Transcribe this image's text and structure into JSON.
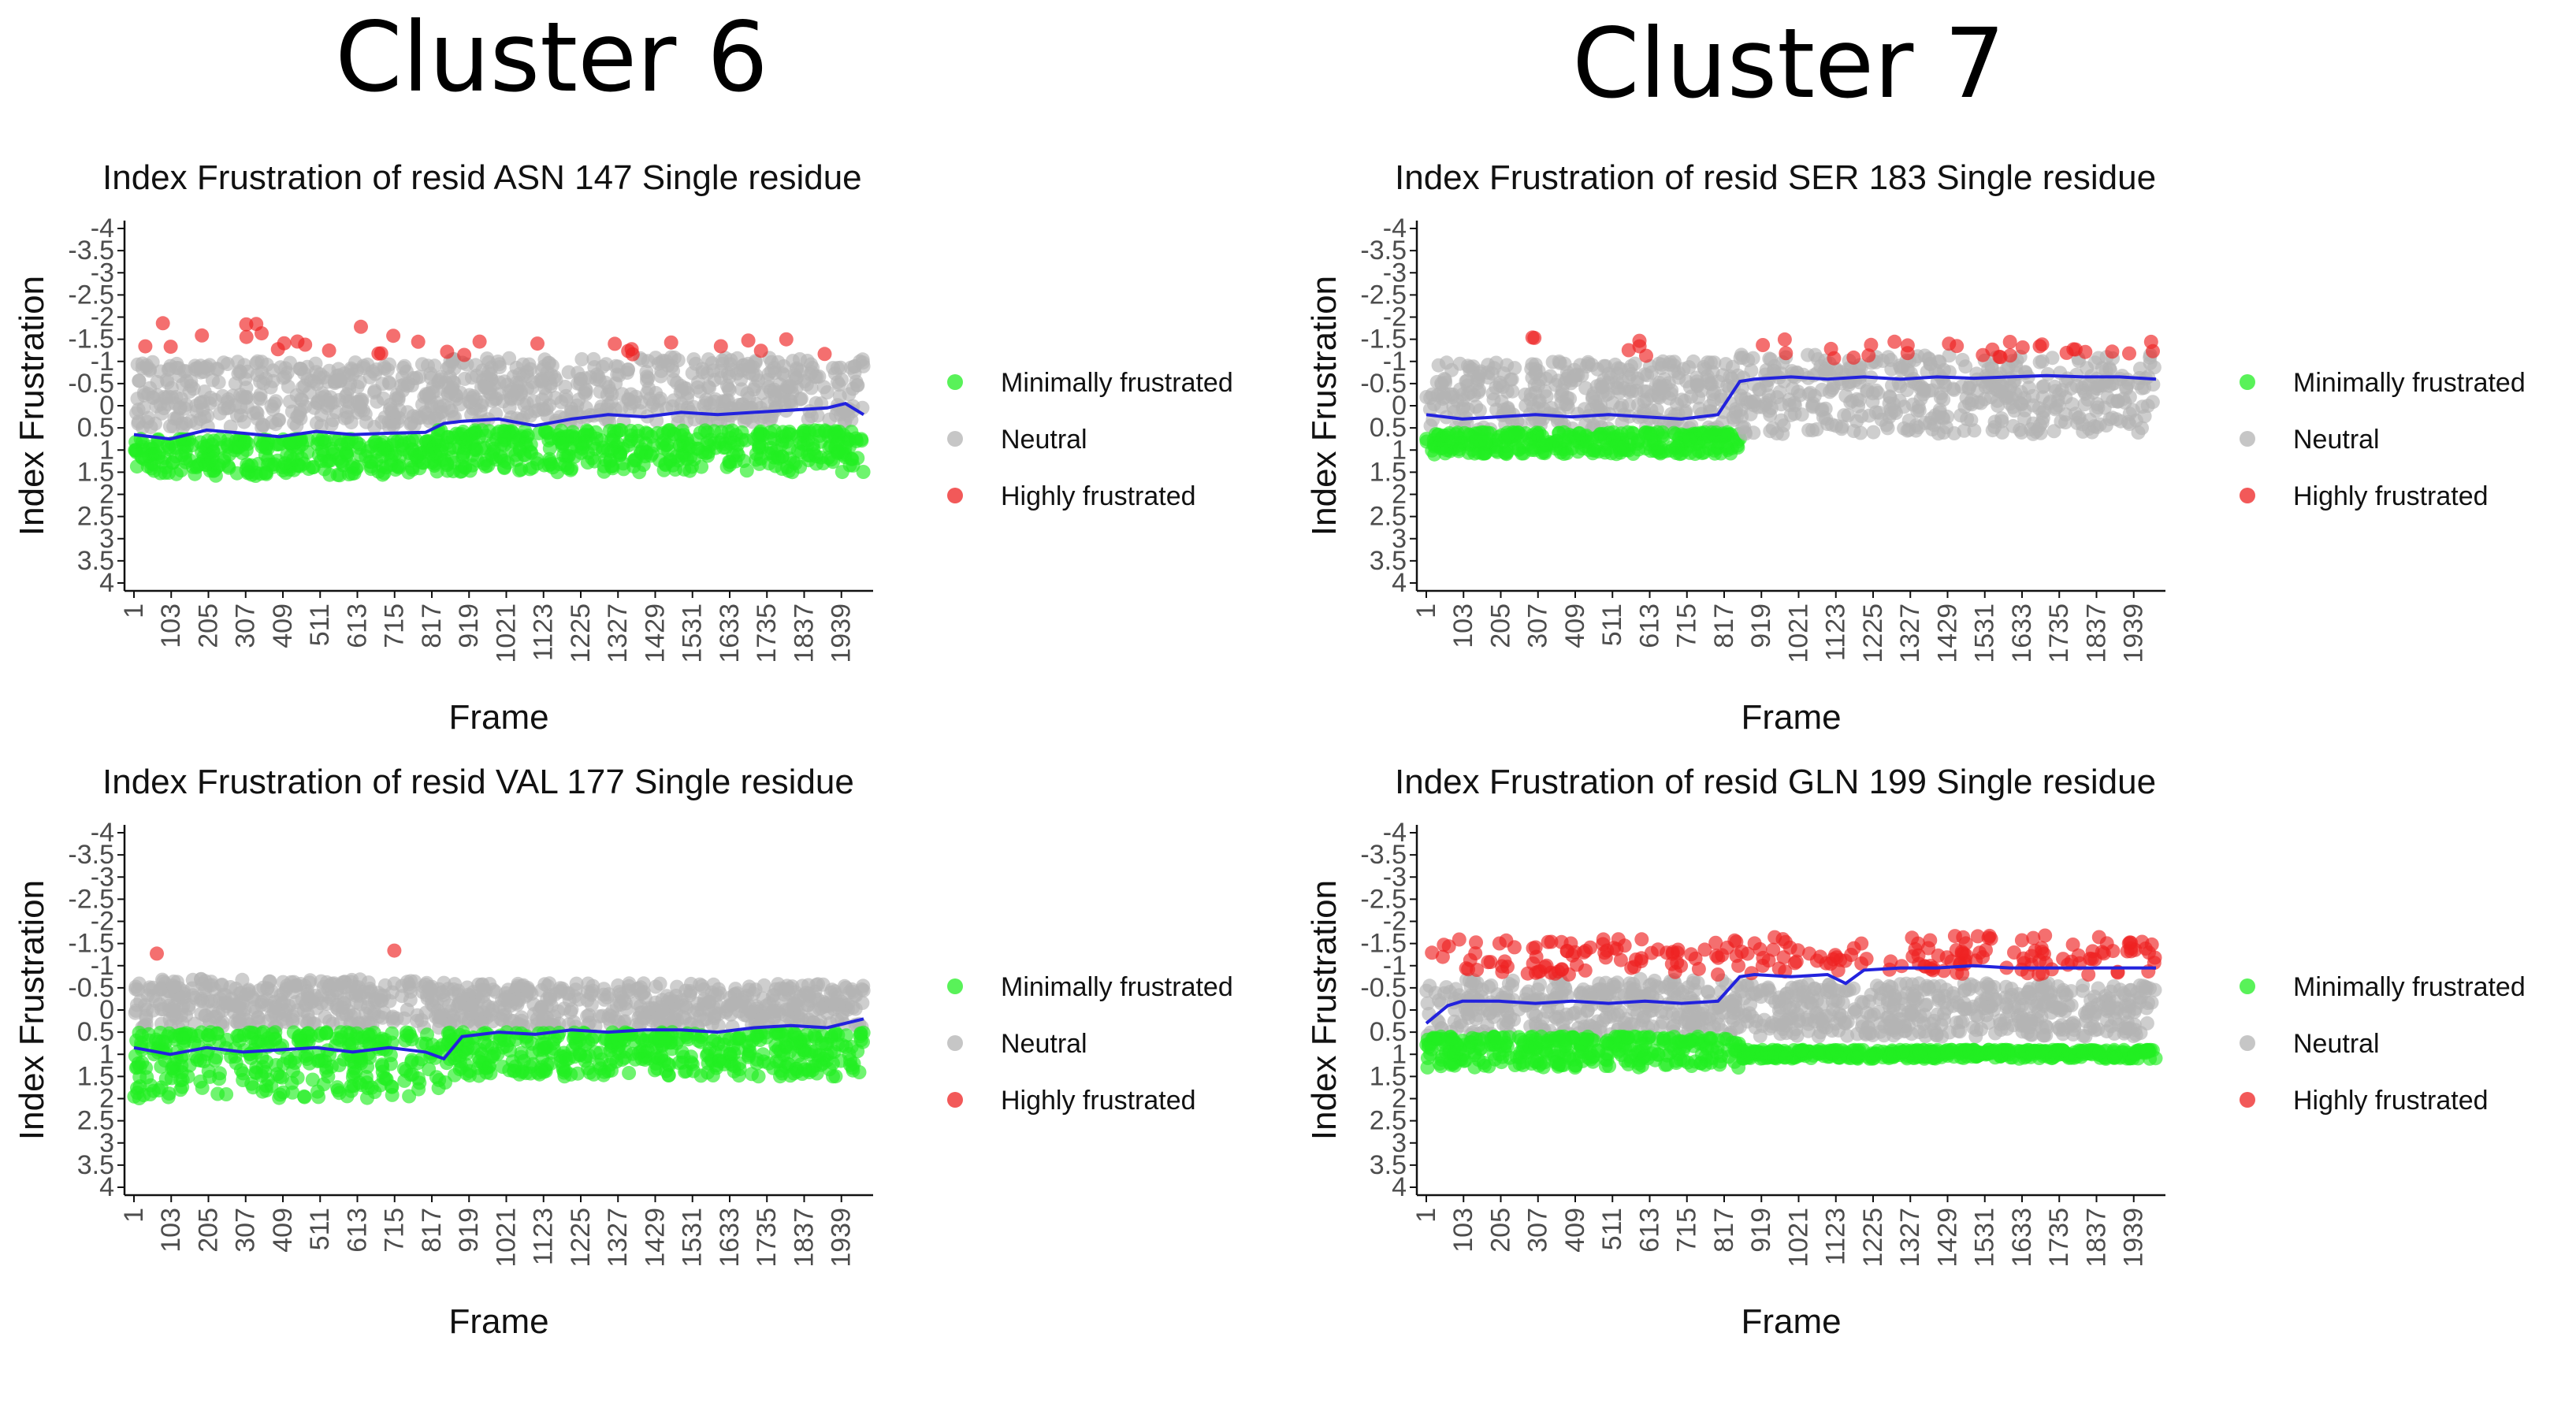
{
  "headings": {
    "left": "Cluster 6",
    "right": "Cluster 7"
  },
  "colors": {
    "minimal": "#22ee22",
    "neutral": "#b3b3b3",
    "high": "#ee2222",
    "trend": "#2222dd",
    "axis": "#111111"
  },
  "legend": {
    "minimal": "Minimally frustrated",
    "neutral": "Neutral",
    "high": "Highly frustrated"
  },
  "axes": {
    "ylabel": "Index Frustration",
    "xlabel": "Frame",
    "yticks": [
      "-4",
      "-3.5",
      "-3",
      "-2.5",
      "-2",
      "-1.5",
      "-1",
      "-0.5",
      "0",
      "0.5",
      "1",
      "1.5",
      "2",
      "2.5",
      "3",
      "3.5",
      "4"
    ],
    "xticks": [
      "1",
      "103",
      "205",
      "307",
      "409",
      "511",
      "613",
      "715",
      "817",
      "919",
      "1021",
      "1123",
      "1225",
      "1327",
      "1429",
      "1531",
      "1633",
      "1735",
      "1837",
      "1939"
    ]
  },
  "chart_data": [
    {
      "type": "scatter",
      "title": "Index Frustration of resid ASN 147 Single residue",
      "xlabel": "Frame",
      "ylabel": "Index Frustration",
      "xlim": [
        1,
        2000
      ],
      "ylim": [
        4,
        -4
      ],
      "grid": false,
      "legend_position": "right",
      "neutral_band": [
        -0.7,
        0.7
      ],
      "segments": [
        {
          "x": [
            1,
            830
          ],
          "minimal": [
            0.75,
            1.6
          ],
          "neutral": [
            -1.0,
            0.5
          ],
          "high": [
            -2.0,
            -1.1
          ],
          "high_count": 18
        },
        {
          "x": [
            830,
            2000
          ],
          "minimal": [
            0.55,
            1.5
          ],
          "neutral": [
            -1.1,
            0.4
          ],
          "high": [
            -1.5,
            -1.1
          ],
          "high_count": 14
        }
      ],
      "trend": {
        "x": [
          1,
          100,
          200,
          300,
          400,
          500,
          600,
          700,
          800,
          850,
          900,
          1000,
          1100,
          1200,
          1300,
          1400,
          1500,
          1600,
          1700,
          1800,
          1900,
          1950,
          2000
        ],
        "y": [
          0.65,
          0.75,
          0.55,
          0.62,
          0.7,
          0.58,
          0.65,
          0.62,
          0.6,
          0.4,
          0.35,
          0.3,
          0.45,
          0.3,
          0.2,
          0.25,
          0.15,
          0.2,
          0.15,
          0.1,
          0.05,
          -0.05,
          0.2
        ]
      }
    },
    {
      "type": "scatter",
      "title": "Index Frustration of resid SER 183 Single residue",
      "xlabel": "Frame",
      "ylabel": "Index Frustration",
      "xlim": [
        1,
        2000
      ],
      "ylim": [
        4,
        -4
      ],
      "grid": false,
      "legend_position": "right",
      "neutral_band": [
        -0.7,
        0.7
      ],
      "segments": [
        {
          "x": [
            1,
            860
          ],
          "minimal": [
            0.6,
            1.1
          ],
          "neutral": [
            -1.0,
            0.55
          ],
          "high": [
            -1.6,
            -1.1
          ],
          "high_count": 6
        },
        {
          "x": [
            860,
            2000
          ],
          "minimal": null,
          "neutral": [
            -1.15,
            0.65
          ],
          "high": [
            -1.5,
            -1.05
          ],
          "high_count": 30
        }
      ],
      "trend": {
        "x": [
          1,
          100,
          200,
          300,
          400,
          500,
          600,
          700,
          800,
          860,
          900,
          1000,
          1100,
          1200,
          1300,
          1400,
          1500,
          1600,
          1700,
          1800,
          1900,
          2000
        ],
        "y": [
          0.2,
          0.3,
          0.25,
          0.2,
          0.25,
          0.2,
          0.25,
          0.3,
          0.2,
          -0.55,
          -0.6,
          -0.65,
          -0.6,
          -0.65,
          -0.6,
          -0.65,
          -0.62,
          -0.65,
          -0.68,
          -0.65,
          -0.65,
          -0.6
        ]
      }
    },
    {
      "type": "scatter",
      "title": "Index Frustration of resid VAL 177 Single residue",
      "xlabel": "Frame",
      "ylabel": "Index Frustration",
      "xlim": [
        1,
        2000
      ],
      "ylim": [
        4,
        -4
      ],
      "grid": false,
      "legend_position": "right",
      "neutral_band": [
        -0.7,
        0.7
      ],
      "segments": [
        {
          "x": [
            1,
            860
          ],
          "minimal": [
            0.5,
            2.0
          ],
          "neutral": [
            -0.7,
            0.4
          ],
          "high": [
            -1.35,
            -1.25
          ],
          "high_count": 2
        },
        {
          "x": [
            860,
            2000
          ],
          "minimal": [
            0.5,
            1.5
          ],
          "neutral": [
            -0.6,
            0.4
          ],
          "high": null,
          "high_count": 0
        }
      ],
      "trend": {
        "x": [
          1,
          100,
          200,
          300,
          400,
          500,
          600,
          700,
          800,
          850,
          900,
          1000,
          1100,
          1200,
          1300,
          1400,
          1500,
          1600,
          1700,
          1800,
          1900,
          2000
        ],
        "y": [
          0.85,
          1.0,
          0.85,
          0.95,
          0.9,
          0.85,
          0.95,
          0.85,
          0.95,
          1.1,
          0.6,
          0.5,
          0.55,
          0.45,
          0.5,
          0.45,
          0.45,
          0.5,
          0.4,
          0.35,
          0.4,
          0.2
        ]
      }
    },
    {
      "type": "scatter",
      "title": "Index Frustration of resid GLN 199 Single residue",
      "xlabel": "Frame",
      "ylabel": "Index Frustration",
      "xlim": [
        1,
        2000
      ],
      "ylim": [
        4,
        -4
      ],
      "grid": false,
      "legend_position": "right",
      "neutral_band": [
        -0.7,
        0.7
      ],
      "segments": [
        {
          "x": [
            1,
            860
          ],
          "minimal": [
            0.6,
            1.3
          ],
          "neutral": [
            -0.7,
            0.6
          ],
          "high": [
            -1.6,
            -0.8
          ],
          "high_count": 90
        },
        {
          "x": [
            860,
            2000
          ],
          "minimal": [
            0.9,
            1.1
          ],
          "neutral": [
            -0.6,
            0.6
          ],
          "high": [
            -1.7,
            -0.8
          ],
          "high_count": 130
        }
      ],
      "trend": {
        "x": [
          1,
          60,
          100,
          200,
          300,
          400,
          500,
          600,
          700,
          800,
          860,
          900,
          1000,
          1100,
          1150,
          1200,
          1300,
          1400,
          1500,
          1600,
          1700,
          1800,
          1900,
          2000
        ],
        "y": [
          0.3,
          -0.1,
          -0.2,
          -0.2,
          -0.15,
          -0.2,
          -0.15,
          -0.2,
          -0.15,
          -0.2,
          -0.75,
          -0.8,
          -0.75,
          -0.8,
          -0.6,
          -0.9,
          -0.95,
          -0.95,
          -1.0,
          -0.95,
          -0.95,
          -0.95,
          -0.95,
          -0.95
        ]
      }
    }
  ]
}
